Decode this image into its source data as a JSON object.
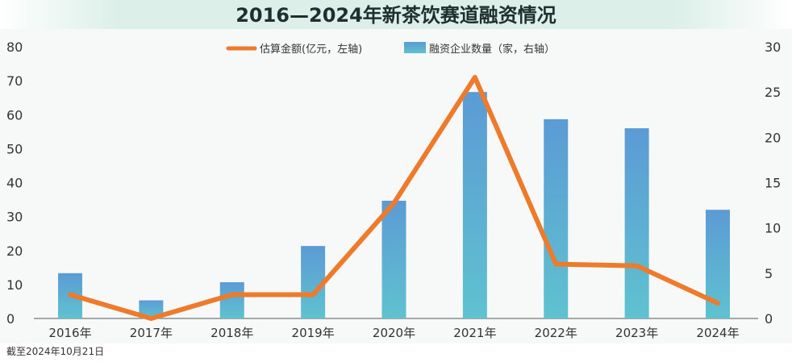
{
  "chart_data": {
    "type": "bar",
    "title": "2016—2024年新茶饮赛道融资情况",
    "categories": [
      "2016年",
      "2017年",
      "2018年",
      "2019年",
      "2020年",
      "2021年",
      "2022年",
      "2023年",
      "2024年"
    ],
    "series": [
      {
        "name": "估算金额(亿元，左轴)",
        "type": "line",
        "axis": "left",
        "values": [
          7,
          0,
          7,
          7,
          34,
          71,
          16,
          15.5,
          4.5
        ],
        "color": "#ee7a2c"
      },
      {
        "name": "融资企业数量（家，右轴）",
        "type": "bar",
        "axis": "right",
        "values": [
          5,
          2,
          4,
          8,
          13,
          25,
          22,
          21,
          12
        ],
        "color_top": "#5b9bd5",
        "color_bottom": "#5fc2cf"
      }
    ],
    "y_left": {
      "range": [
        0,
        80
      ],
      "ticks": [
        0,
        10,
        20,
        30,
        40,
        50,
        60,
        70,
        80
      ]
    },
    "y_right": {
      "range": [
        0,
        30
      ],
      "ticks": [
        0,
        5,
        10,
        15,
        20,
        25,
        30
      ]
    },
    "grid": false,
    "legend_position": "top-center"
  },
  "footnote": "截至2024年10月21日",
  "colors": {
    "title_band": "#dcefe8",
    "plot_background": "#f7f9f9",
    "line": "#ee7a2c",
    "axis": "#555555"
  }
}
